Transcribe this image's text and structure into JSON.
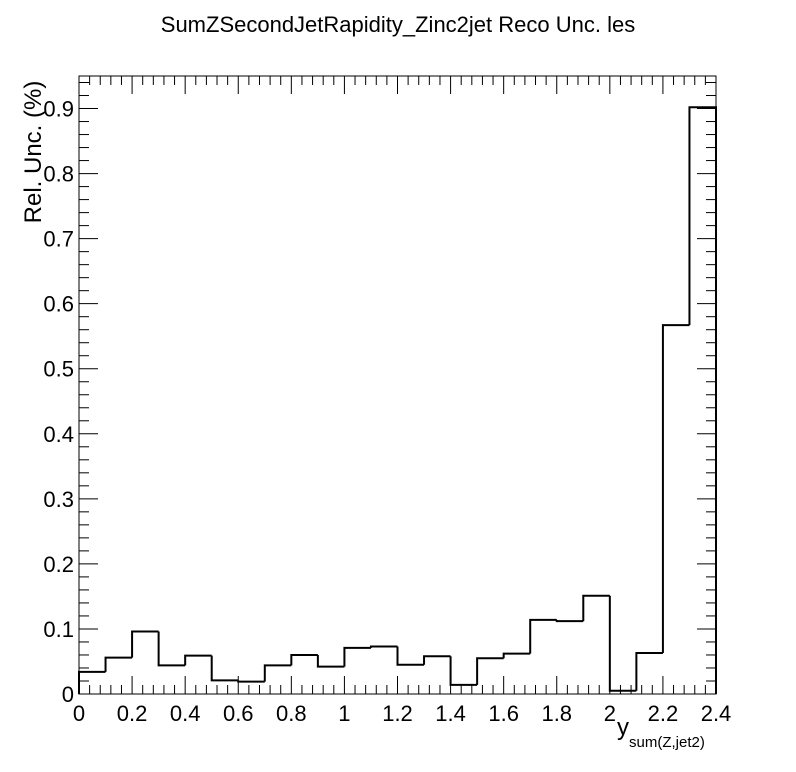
{
  "chart_data": {
    "type": "bar",
    "title": "SumZSecondJetRapidity_Zinc2jet Reco Unc. les",
    "xlabel": "y",
    "xlabel_sub": "sum(Z,jet2)",
    "ylabel": "Rel. Unc. (%)",
    "xlim": [
      0,
      2.4
    ],
    "ylim": [
      0,
      0.95
    ],
    "grid": false,
    "bin_edges": [
      0,
      0.1,
      0.2,
      0.3,
      0.4,
      0.5,
      0.6,
      0.7,
      0.8,
      0.9,
      1.0,
      1.1,
      1.2,
      1.3,
      1.4,
      1.5,
      1.6,
      1.7,
      1.8,
      1.9,
      2.0,
      2.1,
      2.2,
      2.3,
      2.4
    ],
    "values": [
      0.034,
      0.056,
      0.096,
      0.044,
      0.059,
      0.021,
      0.019,
      0.044,
      0.06,
      0.042,
      0.071,
      0.073,
      0.045,
      0.058,
      0.014,
      0.055,
      0.062,
      0.114,
      0.112,
      0.151,
      0.005,
      0.063,
      0.567,
      0.902
    ],
    "x_ticks": [
      "0",
      "0.2",
      "0.4",
      "0.6",
      "0.8",
      "1",
      "1.2",
      "1.4",
      "1.6",
      "1.8",
      "2",
      "2.2",
      "2.4"
    ],
    "y_ticks": [
      "0",
      "0.1",
      "0.2",
      "0.3",
      "0.4",
      "0.5",
      "0.6",
      "0.7",
      "0.8",
      "0.9"
    ]
  }
}
